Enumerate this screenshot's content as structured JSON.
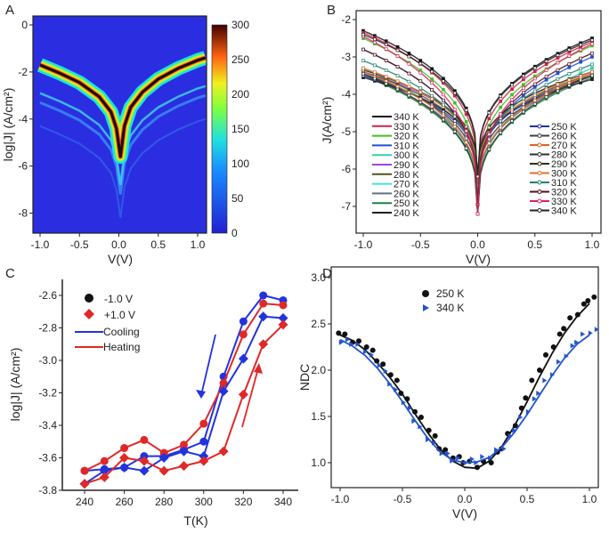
{
  "chart_data": [
    {
      "panel": "A",
      "type": "heatmap",
      "xlabel": "V(V)",
      "ylabel": "log|J| (A/cm²)",
      "xlim": [
        -1.0,
        1.1
      ],
      "ylim": [
        -9,
        0
      ],
      "xticks": [
        "-1.0",
        "-0.5",
        "0.0",
        "0.5",
        "1.0"
      ],
      "yticks": [
        "0",
        "-2",
        "-4",
        "-6",
        "-8"
      ],
      "colorbar": {
        "range": [
          0,
          300
        ],
        "ticks": [
          "300",
          "250",
          "200",
          "150",
          "100",
          "50",
          "0"
        ]
      },
      "mean_curve": {
        "V": [
          -1.0,
          -0.75,
          -0.5,
          -0.25,
          -0.1,
          -0.03,
          0.02,
          0.07,
          0.15,
          0.3,
          0.5,
          0.75,
          1.0,
          1.1
        ],
        "logJ": [
          -1.7,
          -2.05,
          -2.45,
          -3.05,
          -3.7,
          -4.4,
          -5.6,
          -4.3,
          -3.5,
          -2.85,
          -2.3,
          -1.85,
          -1.5,
          -1.4
        ]
      }
    },
    {
      "panel": "B",
      "type": "line",
      "xlabel": "V(V)",
      "ylabel": "J(A/cm²)",
      "xlim": [
        -1.0,
        1.0
      ],
      "ylim": [
        -7.5,
        -2
      ],
      "xticks": [
        "-1.0",
        "-0.5",
        "0.0",
        "0.5",
        "1.0"
      ],
      "yticks": [
        "-2",
        "-3",
        "-4",
        "-5",
        "-6",
        "-7"
      ],
      "legend_left": [
        "340 K",
        "330 K",
        "320 K",
        "310 K",
        "300 K",
        "290 K",
        "280 K",
        "270 K",
        "260 K",
        "250 K",
        "240 K"
      ],
      "legend_right": [
        "250 K",
        "260 K",
        "270 K",
        "280 K",
        "290 K",
        "300 K",
        "310 K",
        "320 K",
        "330 K",
        "340 K"
      ],
      "series": [
        {
          "name": "340 K",
          "sweep": "cooling",
          "color": "#111111",
          "at_minus1": -2.3,
          "at_plus1": -2.5
        },
        {
          "name": "330 K",
          "sweep": "cooling",
          "color": "#d0204a",
          "at_minus1": -2.35,
          "at_plus1": -2.6
        },
        {
          "name": "320 K",
          "sweep": "cooling",
          "color": "#40c020",
          "at_minus1": -2.5,
          "at_plus1": -2.7
        },
        {
          "name": "310 K",
          "sweep": "cooling",
          "color": "#2050d0",
          "at_minus1": -2.8,
          "at_plus1": -3.0
        },
        {
          "name": "300 K",
          "sweep": "cooling",
          "color": "#30d0b0",
          "at_minus1": -3.3,
          "at_plus1": -3.3
        },
        {
          "name": "290 K",
          "sweep": "cooling",
          "color": "#a040e0",
          "at_minus1": -3.4,
          "at_plus1": -3.4
        },
        {
          "name": "280 K",
          "sweep": "cooling",
          "color": "#505020",
          "at_minus1": -3.4,
          "at_plus1": -3.45
        },
        {
          "name": "270 K",
          "sweep": "cooling",
          "color": "#40e0e0",
          "at_minus1": -3.45,
          "at_plus1": -3.5
        },
        {
          "name": "260 K",
          "sweep": "cooling",
          "color": "#607080",
          "at_minus1": -3.5,
          "at_plus1": -3.5
        },
        {
          "name": "250 K",
          "sweep": "cooling",
          "color": "#208040",
          "at_minus1": -3.5,
          "at_plus1": -3.55
        },
        {
          "name": "240 K",
          "sweep": "cooling",
          "color": "#202020",
          "at_minus1": -3.55,
          "at_plus1": -3.6
        },
        {
          "name": "250 K",
          "sweep": "heating",
          "color": "#2030a0",
          "at_minus1": -3.5,
          "at_plus1": -3.5
        },
        {
          "name": "260 K",
          "sweep": "heating",
          "color": "#404040",
          "at_minus1": -3.45,
          "at_plus1": -3.5
        },
        {
          "name": "270 K",
          "sweep": "heating",
          "color": "#e06020",
          "at_minus1": -3.4,
          "at_plus1": -3.45
        },
        {
          "name": "280 K",
          "sweep": "heating",
          "color": "#303030",
          "at_minus1": -3.45,
          "at_plus1": -3.5
        },
        {
          "name": "290 K",
          "sweep": "heating",
          "color": "#303010",
          "at_minus1": -3.35,
          "at_plus1": -3.4
        },
        {
          "name": "300 K",
          "sweep": "heating",
          "color": "#e07030",
          "at_minus1": -3.3,
          "at_plus1": -3.4
        },
        {
          "name": "310 K",
          "sweep": "heating",
          "color": "#208070",
          "at_minus1": -3.1,
          "at_plus1": -3.2
        },
        {
          "name": "320 K",
          "sweep": "heating",
          "color": "#501010",
          "at_minus1": -2.8,
          "at_plus1": -2.9
        },
        {
          "name": "330 K",
          "sweep": "heating",
          "color": "#e02060",
          "at_minus1": -2.45,
          "at_plus1": -2.65
        },
        {
          "name": "340 K",
          "sweep": "heating",
          "color": "#222222",
          "at_minus1": -2.4,
          "at_plus1": -2.55
        }
      ]
    },
    {
      "panel": "C",
      "type": "line",
      "xlabel": "T(K)",
      "ylabel": "log|J| (A/cm²)",
      "xlim": [
        230,
        350
      ],
      "ylim": [
        -3.8,
        -2.5
      ],
      "xticks": [
        "240",
        "260",
        "280",
        "300",
        "320",
        "340"
      ],
      "yticks": [
        "-2.6",
        "-2.8",
        "-3.0",
        "-3.2",
        "-3.4",
        "-3.6",
        "-3.8"
      ],
      "legend": [
        "-1.0 V",
        "+1.0 V",
        "Cooling",
        "Heating"
      ],
      "x": [
        240,
        250,
        260,
        270,
        280,
        290,
        300,
        310,
        320,
        330,
        340
      ],
      "series": [
        {
          "name": "-1.0 V Cooling",
          "marker": "circle",
          "color": "#2233dd",
          "values": [
            -3.68,
            -3.67,
            -3.66,
            -3.59,
            -3.59,
            -3.55,
            -3.5,
            -3.1,
            -2.76,
            -2.6,
            -2.63
          ]
        },
        {
          "name": "-1.0 V Heating",
          "marker": "circle",
          "color": "#e02828",
          "values": [
            -3.68,
            -3.62,
            -3.54,
            -3.49,
            -3.57,
            -3.52,
            -3.39,
            -3.14,
            -2.84,
            -2.65,
            -2.66
          ]
        },
        {
          "name": "+1.0 V Cooling",
          "marker": "diamond",
          "color": "#2233dd",
          "values": [
            -3.76,
            -3.68,
            -3.66,
            -3.68,
            -3.6,
            -3.56,
            -3.59,
            -3.19,
            -2.99,
            -2.73,
            -2.74
          ]
        },
        {
          "name": "+1.0 V Heating",
          "marker": "diamond",
          "color": "#e02828",
          "values": [
            -3.76,
            -3.72,
            -3.6,
            -3.62,
            -3.68,
            -3.65,
            -3.62,
            -3.56,
            -3.21,
            -2.9,
            -2.78
          ]
        }
      ]
    },
    {
      "panel": "D",
      "type": "scatter",
      "xlabel": "V(V)",
      "ylabel": "NDC",
      "xlim": [
        -1.05,
        1.05
      ],
      "ylim": [
        0.8,
        3.0
      ],
      "xticks": [
        "-1.0",
        "-0.5",
        "0.0",
        "0.5",
        "1.0"
      ],
      "yticks": [
        "3.0",
        "2.5",
        "2.0",
        "1.5",
        "1.0"
      ],
      "legend": [
        "250 K",
        "340 K"
      ],
      "x": [
        -1.0,
        -0.9,
        -0.8,
        -0.7,
        -0.6,
        -0.5,
        -0.4,
        -0.3,
        -0.2,
        -0.1,
        0.0,
        0.1,
        0.2,
        0.3,
        0.4,
        0.5,
        0.6,
        0.7,
        0.8,
        0.9,
        1.0
      ],
      "series": [
        {
          "name": "250 K",
          "marker": "circle",
          "color": "#111111",
          "values": [
            2.4,
            2.3,
            2.25,
            2.1,
            1.95,
            1.75,
            1.55,
            1.35,
            1.15,
            1.05,
            1.0,
            0.95,
            1.0,
            1.15,
            1.4,
            1.7,
            2.0,
            2.25,
            2.45,
            2.6,
            2.75
          ],
          "fit": [
            2.38,
            2.32,
            2.22,
            2.08,
            1.92,
            1.74,
            1.53,
            1.33,
            1.15,
            1.02,
            0.95,
            0.94,
            1.02,
            1.18,
            1.4,
            1.66,
            1.93,
            2.18,
            2.4,
            2.58,
            2.72
          ]
        },
        {
          "name": "340 K",
          "marker": "triangle",
          "color": "#2255cc",
          "values": [
            2.3,
            2.28,
            2.2,
            2.05,
            1.85,
            1.65,
            1.45,
            1.25,
            1.1,
            1.02,
            1.0,
            1.0,
            1.05,
            1.15,
            1.35,
            1.55,
            1.75,
            1.95,
            2.15,
            2.3,
            2.4
          ],
          "fit": [
            2.33,
            2.26,
            2.16,
            2.02,
            1.85,
            1.66,
            1.46,
            1.27,
            1.12,
            1.03,
            1.0,
            1.01,
            1.06,
            1.17,
            1.33,
            1.52,
            1.73,
            1.94,
            2.13,
            2.28,
            2.38
          ]
        }
      ]
    }
  ]
}
